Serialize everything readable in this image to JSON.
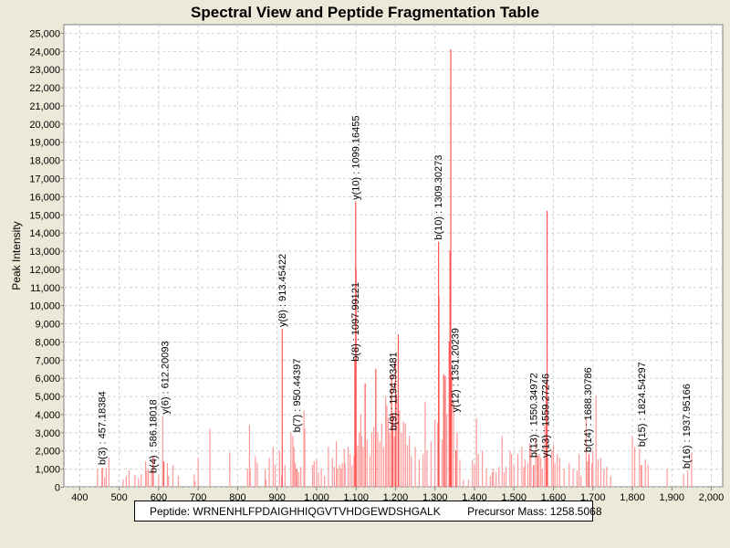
{
  "chart_data": {
    "type": "bar",
    "title": "Spectral View and Peptide Fragmentation Table",
    "xlabel": "Mass (m/z)",
    "ylabel": "Peak Intensity",
    "xlim": [
      361,
      2030
    ],
    "ylim": [
      0,
      25450
    ],
    "xticks": [
      400,
      500,
      600,
      700,
      800,
      900,
      1000,
      1100,
      1200,
      1300,
      1400,
      1500,
      1600,
      1700,
      1800,
      1900,
      2000
    ],
    "xtick_labels": [
      "400",
      "500",
      "600",
      "700",
      "800",
      "900",
      "1,000",
      "1,100",
      "1,200",
      "1,300",
      "1,400",
      "1,500",
      "1,600",
      "1,700",
      "1,800",
      "1,900",
      "2,000"
    ],
    "yticks": [
      0,
      1000,
      2000,
      3000,
      4000,
      5000,
      6000,
      7000,
      8000,
      9000,
      10000,
      11000,
      12000,
      13000,
      14000,
      15000,
      16000,
      17000,
      18000,
      19000,
      20000,
      21000,
      22000,
      23000,
      24000,
      25000
    ],
    "ytick_labels": [
      "0",
      "1,000",
      "2,000",
      "3,000",
      "4,000",
      "5,000",
      "6,000",
      "7,000",
      "8,000",
      "9,000",
      "10,000",
      "11,000",
      "12,000",
      "13,000",
      "14,000",
      "15,000",
      "16,000",
      "17,000",
      "18,000",
      "19,000",
      "20,000",
      "21,000",
      "22,000",
      "23,000",
      "24,000",
      "25,000"
    ],
    "grid": true,
    "colors": {
      "peak": "#ff5555",
      "peak_light": "#ff9999",
      "background": "#ece9d8",
      "plot": "#ffffff"
    },
    "peaks": [
      [
        445,
        1000
      ],
      [
        457,
        1050
      ],
      [
        463,
        500
      ],
      [
        467,
        1050
      ],
      [
        474,
        1600
      ],
      [
        510,
        400
      ],
      [
        518,
        600
      ],
      [
        525,
        900
      ],
      [
        540,
        650
      ],
      [
        549,
        500
      ],
      [
        556,
        700
      ],
      [
        567,
        1400
      ],
      [
        570,
        900
      ],
      [
        574,
        1000
      ],
      [
        582,
        1000
      ],
      [
        586,
        1700
      ],
      [
        600,
        600
      ],
      [
        610,
        3900
      ],
      [
        613,
        1400
      ],
      [
        622,
        1300
      ],
      [
        625,
        600
      ],
      [
        636,
        1200
      ],
      [
        650,
        600
      ],
      [
        690,
        700
      ],
      [
        692,
        300
      ],
      [
        700,
        1600
      ],
      [
        730,
        3200
      ],
      [
        780,
        1900
      ],
      [
        825,
        1000
      ],
      [
        830,
        3400
      ],
      [
        832,
        1000
      ],
      [
        845,
        1700
      ],
      [
        850,
        1300
      ],
      [
        870,
        1000
      ],
      [
        872,
        400
      ],
      [
        880,
        1600
      ],
      [
        890,
        2200
      ],
      [
        895,
        1200
      ],
      [
        906,
        2000
      ],
      [
        912,
        600
      ],
      [
        913,
        8700
      ],
      [
        920,
        1200
      ],
      [
        935,
        3000
      ],
      [
        940,
        2800
      ],
      [
        941,
        1500
      ],
      [
        943,
        2200
      ],
      [
        946,
        1300
      ],
      [
        950,
        1000
      ],
      [
        955,
        800
      ],
      [
        960,
        1100
      ],
      [
        968,
        4200
      ],
      [
        970,
        3200
      ],
      [
        990,
        1200
      ],
      [
        994,
        1400
      ],
      [
        1000,
        1500
      ],
      [
        1005,
        800
      ],
      [
        1012,
        1000
      ],
      [
        1020,
        600
      ],
      [
        1030,
        2200
      ],
      [
        1040,
        1600
      ],
      [
        1045,
        1100
      ],
      [
        1050,
        2500
      ],
      [
        1053,
        1000
      ],
      [
        1058,
        1200
      ],
      [
        1062,
        1000
      ],
      [
        1065,
        1300
      ],
      [
        1070,
        2100
      ],
      [
        1072,
        1300
      ],
      [
        1080,
        2200
      ],
      [
        1085,
        1800
      ],
      [
        1090,
        1200
      ],
      [
        1095,
        1700
      ],
      [
        1097,
        7000
      ],
      [
        1099,
        15700
      ],
      [
        1100,
        12000
      ],
      [
        1104,
        2300
      ],
      [
        1108,
        3000
      ],
      [
        1112,
        4000
      ],
      [
        1114,
        2800
      ],
      [
        1118,
        2200
      ],
      [
        1123,
        5700
      ],
      [
        1128,
        2600
      ],
      [
        1135,
        1700
      ],
      [
        1140,
        3000
      ],
      [
        1145,
        3300
      ],
      [
        1150,
        6500
      ],
      [
        1155,
        3000
      ],
      [
        1160,
        2500
      ],
      [
        1165,
        3500
      ],
      [
        1170,
        2200
      ],
      [
        1175,
        5000
      ],
      [
        1178,
        4500
      ],
      [
        1182,
        3800
      ],
      [
        1185,
        3000
      ],
      [
        1190,
        6200
      ],
      [
        1193,
        4000
      ],
      [
        1197,
        2800
      ],
      [
        1200,
        7000
      ],
      [
        1203,
        5000
      ],
      [
        1207,
        8400
      ],
      [
        1210,
        4200
      ],
      [
        1215,
        3000
      ],
      [
        1220,
        3600
      ],
      [
        1225,
        3500
      ],
      [
        1230,
        2300
      ],
      [
        1235,
        2800
      ],
      [
        1240,
        1700
      ],
      [
        1250,
        2200
      ],
      [
        1260,
        1500
      ],
      [
        1270,
        1800
      ],
      [
        1275,
        4700
      ],
      [
        1280,
        2000
      ],
      [
        1290,
        2500
      ],
      [
        1300,
        3700
      ],
      [
        1307,
        3500
      ],
      [
        1309,
        13500
      ],
      [
        1310,
        10500
      ],
      [
        1318,
        2600
      ],
      [
        1322,
        6200
      ],
      [
        1326,
        6100
      ],
      [
        1330,
        4000
      ],
      [
        1336,
        8000
      ],
      [
        1338,
        13000
      ],
      [
        1340,
        24100
      ],
      [
        1342,
        6300
      ],
      [
        1347,
        4700
      ],
      [
        1353,
        2000
      ],
      [
        1356,
        3000
      ],
      [
        1363,
        1500
      ],
      [
        1372,
        400
      ],
      [
        1385,
        400
      ],
      [
        1395,
        1500
      ],
      [
        1400,
        1200
      ],
      [
        1405,
        3800
      ],
      [
        1410,
        1800
      ],
      [
        1420,
        2000
      ],
      [
        1430,
        1000
      ],
      [
        1440,
        600
      ],
      [
        1445,
        800
      ],
      [
        1448,
        1000
      ],
      [
        1455,
        800
      ],
      [
        1462,
        1100
      ],
      [
        1470,
        2800
      ],
      [
        1475,
        800
      ],
      [
        1480,
        1100
      ],
      [
        1490,
        2000
      ],
      [
        1494,
        1800
      ],
      [
        1500,
        1200
      ],
      [
        1510,
        1800
      ],
      [
        1520,
        2200
      ],
      [
        1525,
        1100
      ],
      [
        1528,
        1500
      ],
      [
        1535,
        1300
      ],
      [
        1540,
        2400
      ],
      [
        1543,
        2200
      ],
      [
        1550,
        1200
      ],
      [
        1555,
        2600
      ],
      [
        1560,
        1700
      ],
      [
        1564,
        1800
      ],
      [
        1568,
        1600
      ],
      [
        1572,
        1000
      ],
      [
        1578,
        3400
      ],
      [
        1582,
        5800
      ],
      [
        1584,
        15200
      ],
      [
        1586,
        1600
      ],
      [
        1596,
        2000
      ],
      [
        1600,
        2300
      ],
      [
        1604,
        1300
      ],
      [
        1610,
        1800
      ],
      [
        1616,
        1600
      ],
      [
        1627,
        1000
      ],
      [
        1640,
        1300
      ],
      [
        1650,
        1000
      ],
      [
        1660,
        900
      ],
      [
        1665,
        1800
      ],
      [
        1670,
        600
      ],
      [
        1683,
        3800
      ],
      [
        1686,
        1400
      ],
      [
        1690,
        1800
      ],
      [
        1697,
        1300
      ],
      [
        1700,
        2000
      ],
      [
        1708,
        5000
      ],
      [
        1713,
        1500
      ],
      [
        1720,
        1600
      ],
      [
        1728,
        1000
      ],
      [
        1735,
        1100
      ],
      [
        1745,
        600
      ],
      [
        1800,
        2800
      ],
      [
        1806,
        2200
      ],
      [
        1818,
        2100
      ],
      [
        1823,
        1200
      ],
      [
        1833,
        1500
      ],
      [
        1840,
        1200
      ],
      [
        1888,
        1000
      ],
      [
        1930,
        700
      ],
      [
        1940,
        900
      ],
      [
        1950,
        1900
      ]
    ],
    "annotations": [
      {
        "label": "b(3) : 457.18384",
        "mz": 457.18384,
        "intensity": 1100
      },
      {
        "label": "b(4) : 586.18018",
        "mz": 586.18018,
        "intensity": 650
      },
      {
        "label": "y(6) : 612.20093",
        "mz": 612.20093,
        "intensity": 3900
      },
      {
        "label": "y(8) : 913.45422",
        "mz": 913.45422,
        "intensity": 8700
      },
      {
        "label": "b(7) : 950.44397",
        "mz": 950.44397,
        "intensity": 2900
      },
      {
        "label": "b(8) : 1097.99121",
        "mz": 1097.99121,
        "intensity": 6800
      },
      {
        "label": "y(10) : 1099.16455",
        "mz": 1099.16455,
        "intensity": 15700
      },
      {
        "label": "b(9) : 1194.93481",
        "mz": 1194.93481,
        "intensity": 3000
      },
      {
        "label": "b(10) : 1309.30273",
        "mz": 1309.30273,
        "intensity": 13500
      },
      {
        "label": "y(12) : 1351.20239",
        "mz": 1351.20239,
        "intensity": 4000
      },
      {
        "label": "b(13) : 1550.34972",
        "mz": 1550.34972,
        "intensity": 1500
      },
      {
        "label": "y(13) : 1559.27246",
        "mz": 1559.27246,
        "intensity": 1500
      },
      {
        "label": "b(14) : 1688.30786",
        "mz": 1688.30786,
        "intensity": 1800
      },
      {
        "label": "b(15) : 1824.54297",
        "mz": 1824.54297,
        "intensity": 2100
      },
      {
        "label": "b(16) : 1937.95166",
        "mz": 1937.95166,
        "intensity": 900
      }
    ]
  },
  "legend": {
    "peptide": "Peptide: WRNENHLFPDAIGHHIQGVTVHDGEWDSHGALK",
    "precursor": "Precursor Mass: 1258.5068"
  }
}
